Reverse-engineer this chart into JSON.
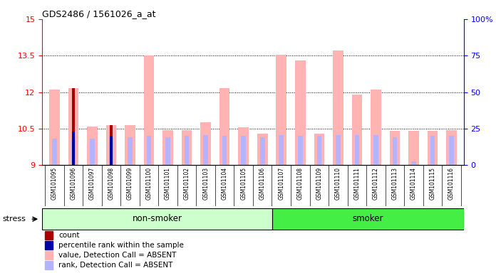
{
  "title": "GDS2486 / 1561026_a_at",
  "samples": [
    "GSM101095",
    "GSM101096",
    "GSM101097",
    "GSM101098",
    "GSM101099",
    "GSM101100",
    "GSM101101",
    "GSM101102",
    "GSM101103",
    "GSM101104",
    "GSM101105",
    "GSM101106",
    "GSM101107",
    "GSM101108",
    "GSM101109",
    "GSM101110",
    "GSM101111",
    "GSM101112",
    "GSM101113",
    "GSM101114",
    "GSM101115",
    "GSM101116"
  ],
  "value_absent": [
    12.1,
    12.15,
    10.6,
    10.65,
    10.65,
    13.5,
    10.45,
    10.45,
    10.75,
    12.15,
    10.55,
    10.3,
    13.55,
    13.3,
    10.3,
    13.7,
    11.9,
    12.1,
    10.4,
    10.4,
    10.4,
    10.45
  ],
  "rank_absent": [
    10.1,
    10.1,
    10.1,
    10.15,
    10.15,
    10.2,
    10.15,
    10.2,
    10.25,
    10.2,
    10.2,
    10.15,
    10.25,
    10.2,
    10.2,
    10.25,
    10.25,
    10.25,
    10.15,
    9.15,
    10.2,
    10.2
  ],
  "count_val": [
    0,
    12.15,
    0,
    10.65,
    0,
    0,
    0,
    0,
    0,
    0,
    0,
    0,
    0,
    0,
    0,
    0,
    0,
    0,
    0,
    0,
    0,
    0
  ],
  "percentile_val": [
    0,
    10.38,
    0,
    10.22,
    0,
    0,
    0,
    0,
    0,
    0,
    0,
    0,
    0,
    0,
    0,
    0,
    0,
    0,
    0,
    0,
    0,
    0
  ],
  "non_smoker_count": 12,
  "smoker_count": 10,
  "ylim_left": [
    9,
    15
  ],
  "ylim_right": [
    0,
    100
  ],
  "yticks_left": [
    9,
    10.5,
    12,
    13.5,
    15
  ],
  "yticks_right": [
    0,
    25,
    50,
    75,
    100
  ],
  "color_value_absent": "#ffb3b3",
  "color_rank_absent": "#b3b3ff",
  "color_count": "#aa0000",
  "color_percentile": "#0000aa",
  "color_non_smoker_light": "#ccffcc",
  "color_smoker_bright": "#44ee44",
  "bar_width": 0.55,
  "baseline": 9.0,
  "background_color": "#ffffff",
  "plot_bg": "#ffffff",
  "xtick_bg": "#cccccc",
  "grid_color": "#000000",
  "grid_dotted": [
    10.5,
    12.0,
    13.5
  ]
}
